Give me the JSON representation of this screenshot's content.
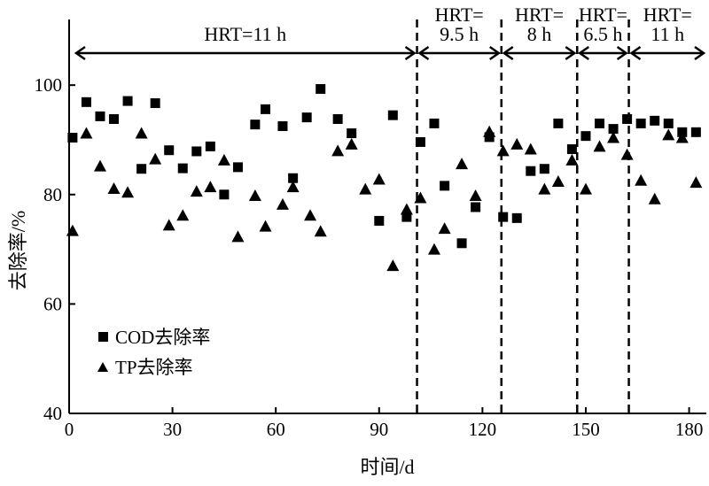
{
  "chart_data": {
    "type": "scatter",
    "xlabel": "时间/d",
    "ylabel": "去除率/%",
    "xlim": [
      0,
      185
    ],
    "ylim": [
      40,
      112
    ],
    "xticks": [
      0,
      30,
      60,
      90,
      120,
      150,
      180
    ],
    "yticks": [
      40,
      60,
      80,
      100
    ],
    "grid": false,
    "legend_position": "bottom-left",
    "series": [
      {
        "name": "COD去除率",
        "marker": "square",
        "x": [
          1,
          5,
          9,
          13,
          17,
          21,
          25,
          29,
          33,
          37,
          41,
          45,
          49,
          54,
          57,
          62,
          65,
          69,
          73,
          78,
          82,
          90,
          94,
          98,
          102,
          106,
          109,
          114,
          118,
          122,
          126,
          130,
          134,
          138,
          142,
          146,
          150,
          154,
          158,
          162,
          166,
          170,
          174,
          178,
          182
        ],
        "y": [
          90.4,
          96.9,
          94.3,
          93.8,
          97.1,
          84.7,
          96.7,
          88.1,
          84.8,
          87.9,
          88.8,
          80.0,
          85.0,
          92.8,
          95.6,
          92.5,
          83.0,
          94.1,
          99.3,
          93.8,
          91.2,
          75.2,
          94.5,
          75.9,
          89.6,
          93.0,
          81.6,
          71.1,
          77.7,
          90.5,
          75.9,
          75.7,
          84.3,
          84.7,
          93.0,
          88.3,
          90.7,
          93.0,
          92.0,
          93.8,
          93.0,
          93.5,
          93.0,
          91.4,
          91.4
        ]
      },
      {
        "name": "TP去除率",
        "marker": "triangle",
        "x": [
          1,
          5,
          9,
          13,
          17,
          21,
          25,
          29,
          33,
          37,
          41,
          45,
          49,
          54,
          57,
          62,
          65,
          70,
          73,
          78,
          82,
          86,
          90,
          94,
          98,
          102,
          106,
          109,
          114,
          118,
          122,
          126,
          130,
          134,
          138,
          142,
          146,
          150,
          154,
          158,
          162,
          166,
          170,
          174,
          178,
          182
        ],
        "y": [
          73.4,
          91.2,
          85.2,
          81.1,
          80.4,
          91.2,
          86.5,
          74.4,
          76.2,
          80.6,
          81.4,
          86.3,
          72.3,
          79.8,
          74.2,
          78.2,
          81.4,
          76.2,
          73.3,
          88.0,
          89.2,
          81.0,
          82.8,
          67.0,
          77.3,
          79.4,
          70.0,
          73.8,
          85.6,
          79.8,
          91.5,
          88.0,
          89.2,
          88.3,
          81.0,
          82.4,
          86.3,
          81.0,
          88.8,
          90.4,
          87.3,
          82.6,
          79.2,
          90.9,
          90.4,
          82.2
        ]
      }
    ],
    "phases": [
      {
        "label_line1": "HRT=11 h",
        "label_line2": "",
        "start": 0,
        "end": 101
      },
      {
        "label_line1": "HRT=",
        "label_line2": "9.5 h",
        "start": 101,
        "end": 125.5
      },
      {
        "label_line1": "HRT=",
        "label_line2": "8 h",
        "start": 125.5,
        "end": 147.5
      },
      {
        "label_line1": "HRT=",
        "label_line2": "6.5 h",
        "start": 147.5,
        "end": 162.5
      },
      {
        "label_line1": "HRT=",
        "label_line2": "11 h",
        "start": 162.5,
        "end": 185
      }
    ],
    "dividers": [
      101,
      125.5,
      147.5,
      162.5
    ]
  }
}
